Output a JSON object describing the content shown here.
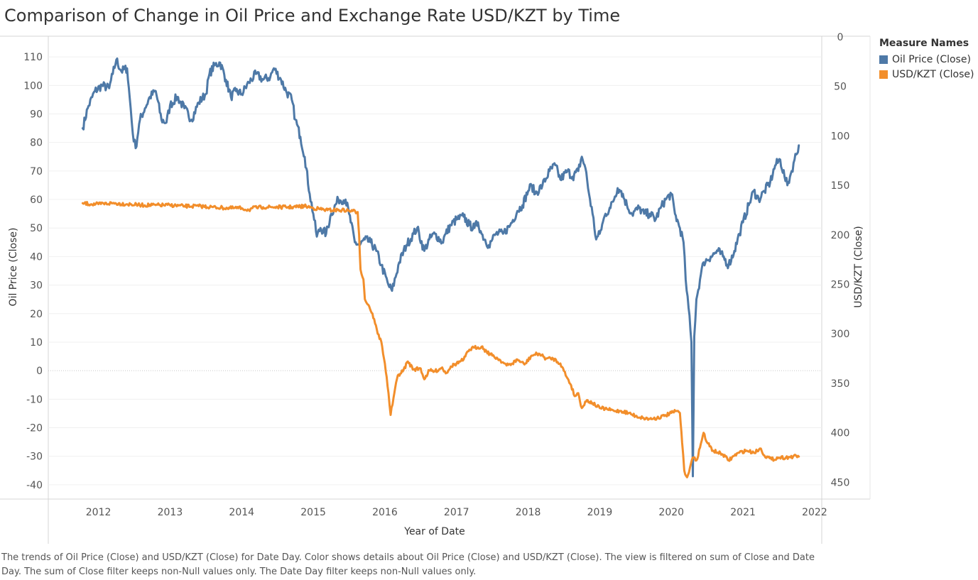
{
  "title": "Comparison of Change in Oil Price and Exchange Rate USD/KZT by Time",
  "caption": "The trends of Oil Price (Close) and USD/KZT (Close) for Date Day.  Color shows details about Oil Price (Close) and USD/KZT (Close). The view is filtered on sum of Close and Date Day. The sum of Close filter keeps non-Null values only. The Date Day filter keeps non-Null values only.",
  "legend": {
    "title": "Measure Names",
    "items": [
      {
        "label": "Oil Price (Close)",
        "color": "#4e79a7"
      },
      {
        "label": "USD/KZT (Close)",
        "color": "#f28e2b"
      }
    ]
  },
  "chart_data": {
    "type": "line",
    "title": "Comparison of Change in Oil Price and Exchange Rate USD/KZT by Time",
    "xlabel": "Year of Date",
    "ylabel_left": "Oil Price (Close)",
    "ylabel_right": "USD/KZT (Close)",
    "xlim": [
      2011.3,
      2022.1
    ],
    "ylim_left": [
      -45,
      117
    ],
    "ylim_right": [
      0,
      467
    ],
    "right_axis_reversed": true,
    "x_ticks": [
      2012,
      2013,
      2014,
      2015,
      2016,
      2017,
      2018,
      2019,
      2020,
      2021,
      2022
    ],
    "y_ticks_left": [
      -40,
      -30,
      -20,
      -10,
      0,
      10,
      20,
      30,
      40,
      50,
      60,
      70,
      80,
      90,
      100,
      110
    ],
    "y_ticks_right": [
      0,
      50,
      100,
      150,
      200,
      250,
      300,
      350,
      400,
      450
    ],
    "grid": true,
    "legend_position": "right",
    "series": [
      {
        "name": "Oil Price (Close)",
        "axis": "left",
        "color": "#4e79a7",
        "points": [
          [
            2011.78,
            85
          ],
          [
            2011.85,
            92
          ],
          [
            2011.95,
            98
          ],
          [
            2012.05,
            100
          ],
          [
            2012.15,
            99
          ],
          [
            2012.2,
            104
          ],
          [
            2012.25,
            109
          ],
          [
            2012.32,
            105
          ],
          [
            2012.4,
            106
          ],
          [
            2012.45,
            92
          ],
          [
            2012.48,
            83
          ],
          [
            2012.52,
            78
          ],
          [
            2012.58,
            88
          ],
          [
            2012.65,
            92
          ],
          [
            2012.72,
            96
          ],
          [
            2012.8,
            98
          ],
          [
            2012.88,
            88
          ],
          [
            2012.95,
            87
          ],
          [
            2013.0,
            93
          ],
          [
            2013.1,
            96
          ],
          [
            2013.2,
            92
          ],
          [
            2013.3,
            88
          ],
          [
            2013.4,
            94
          ],
          [
            2013.5,
            97
          ],
          [
            2013.55,
            104
          ],
          [
            2013.62,
            107
          ],
          [
            2013.7,
            108
          ],
          [
            2013.78,
            102
          ],
          [
            2013.85,
            96
          ],
          [
            2013.92,
            98
          ],
          [
            2014.0,
            97
          ],
          [
            2014.1,
            101
          ],
          [
            2014.2,
            104
          ],
          [
            2014.3,
            102
          ],
          [
            2014.4,
            103
          ],
          [
            2014.45,
            106
          ],
          [
            2014.55,
            102
          ],
          [
            2014.62,
            98
          ],
          [
            2014.7,
            95
          ],
          [
            2014.75,
            88
          ],
          [
            2014.82,
            82
          ],
          [
            2014.88,
            75
          ],
          [
            2014.95,
            62
          ],
          [
            2015.0,
            55
          ],
          [
            2015.05,
            47
          ],
          [
            2015.1,
            50
          ],
          [
            2015.18,
            48
          ],
          [
            2015.25,
            55
          ],
          [
            2015.35,
            60
          ],
          [
            2015.45,
            60
          ],
          [
            2015.5,
            55
          ],
          [
            2015.58,
            45
          ],
          [
            2015.65,
            44
          ],
          [
            2015.72,
            46
          ],
          [
            2015.8,
            45
          ],
          [
            2015.88,
            42
          ],
          [
            2015.95,
            37
          ],
          [
            2016.05,
            30
          ],
          [
            2016.1,
            28
          ],
          [
            2016.2,
            38
          ],
          [
            2016.3,
            44
          ],
          [
            2016.4,
            48
          ],
          [
            2016.45,
            50
          ],
          [
            2016.55,
            42
          ],
          [
            2016.62,
            46
          ],
          [
            2016.7,
            48
          ],
          [
            2016.8,
            45
          ],
          [
            2016.85,
            48
          ],
          [
            2016.92,
            51
          ],
          [
            2017.0,
            53
          ],
          [
            2017.1,
            54
          ],
          [
            2017.18,
            51
          ],
          [
            2017.25,
            50
          ],
          [
            2017.3,
            52
          ],
          [
            2017.35,
            48
          ],
          [
            2017.45,
            44
          ],
          [
            2017.5,
            46
          ],
          [
            2017.55,
            48
          ],
          [
            2017.65,
            48
          ],
          [
            2017.75,
            51
          ],
          [
            2017.85,
            56
          ],
          [
            2017.92,
            58
          ],
          [
            2018.0,
            63
          ],
          [
            2018.05,
            65
          ],
          [
            2018.1,
            62
          ],
          [
            2018.2,
            65
          ],
          [
            2018.3,
            70
          ],
          [
            2018.38,
            72
          ],
          [
            2018.45,
            67
          ],
          [
            2018.55,
            70
          ],
          [
            2018.62,
            68
          ],
          [
            2018.7,
            70
          ],
          [
            2018.75,
            75
          ],
          [
            2018.8,
            71
          ],
          [
            2018.85,
            62
          ],
          [
            2018.9,
            55
          ],
          [
            2018.95,
            46
          ],
          [
            2019.0,
            48
          ],
          [
            2019.08,
            55
          ],
          [
            2019.15,
            57
          ],
          [
            2019.25,
            64
          ],
          [
            2019.3,
            63
          ],
          [
            2019.38,
            58
          ],
          [
            2019.45,
            55
          ],
          [
            2019.55,
            57
          ],
          [
            2019.62,
            55
          ],
          [
            2019.7,
            55
          ],
          [
            2019.78,
            53
          ],
          [
            2019.85,
            57
          ],
          [
            2019.92,
            60
          ],
          [
            2020.0,
            62
          ],
          [
            2020.05,
            55
          ],
          [
            2020.12,
            50
          ],
          [
            2020.17,
            45
          ],
          [
            2020.2,
            32
          ],
          [
            2020.24,
            22
          ],
          [
            2020.28,
            10
          ],
          [
            2020.3,
            -37
          ],
          [
            2020.32,
            12
          ],
          [
            2020.35,
            25
          ],
          [
            2020.4,
            32
          ],
          [
            2020.45,
            38
          ],
          [
            2020.55,
            40
          ],
          [
            2020.65,
            42
          ],
          [
            2020.72,
            40
          ],
          [
            2020.8,
            37
          ],
          [
            2020.88,
            42
          ],
          [
            2020.95,
            48
          ],
          [
            2021.0,
            52
          ],
          [
            2021.08,
            58
          ],
          [
            2021.15,
            63
          ],
          [
            2021.22,
            60
          ],
          [
            2021.3,
            63
          ],
          [
            2021.38,
            66
          ],
          [
            2021.45,
            72
          ],
          [
            2021.52,
            74
          ],
          [
            2021.58,
            68
          ],
          [
            2021.62,
            65
          ],
          [
            2021.68,
            70
          ],
          [
            2021.72,
            74
          ],
          [
            2021.78,
            79
          ]
        ]
      },
      {
        "name": "USD/KZT (Close)",
        "axis": "right",
        "color": "#f28e2b",
        "points": [
          [
            2011.78,
            168
          ],
          [
            2011.9,
            169
          ],
          [
            2012.0,
            169
          ],
          [
            2012.2,
            168
          ],
          [
            2012.4,
            169
          ],
          [
            2012.6,
            170
          ],
          [
            2012.8,
            170
          ],
          [
            2013.0,
            170
          ],
          [
            2013.2,
            171
          ],
          [
            2013.4,
            171
          ],
          [
            2013.6,
            172
          ],
          [
            2013.8,
            173
          ],
          [
            2014.0,
            173
          ],
          [
            2014.1,
            175
          ],
          [
            2014.15,
            173
          ],
          [
            2014.3,
            172
          ],
          [
            2014.5,
            172
          ],
          [
            2014.7,
            172
          ],
          [
            2014.9,
            171
          ],
          [
            2015.0,
            173
          ],
          [
            2015.2,
            175
          ],
          [
            2015.4,
            175
          ],
          [
            2015.55,
            176
          ],
          [
            2015.62,
            177
          ],
          [
            2015.64,
            200
          ],
          [
            2015.66,
            235
          ],
          [
            2015.7,
            245
          ],
          [
            2015.72,
            265
          ],
          [
            2015.78,
            272
          ],
          [
            2015.85,
            285
          ],
          [
            2015.9,
            300
          ],
          [
            2015.95,
            308
          ],
          [
            2016.0,
            330
          ],
          [
            2016.05,
            360
          ],
          [
            2016.08,
            382
          ],
          [
            2016.12,
            365
          ],
          [
            2016.18,
            342
          ],
          [
            2016.25,
            338
          ],
          [
            2016.32,
            328
          ],
          [
            2016.4,
            336
          ],
          [
            2016.5,
            335
          ],
          [
            2016.55,
            346
          ],
          [
            2016.62,
            337
          ],
          [
            2016.7,
            338
          ],
          [
            2016.8,
            334
          ],
          [
            2016.85,
            340
          ],
          [
            2016.92,
            333
          ],
          [
            2017.0,
            330
          ],
          [
            2017.1,
            326
          ],
          [
            2017.18,
            316
          ],
          [
            2017.25,
            314
          ],
          [
            2017.35,
            313
          ],
          [
            2017.42,
            318
          ],
          [
            2017.5,
            322
          ],
          [
            2017.6,
            326
          ],
          [
            2017.7,
            332
          ],
          [
            2017.78,
            330
          ],
          [
            2017.85,
            326
          ],
          [
            2017.95,
            331
          ],
          [
            2018.05,
            322
          ],
          [
            2018.15,
            320
          ],
          [
            2018.25,
            325
          ],
          [
            2018.35,
            325
          ],
          [
            2018.45,
            330
          ],
          [
            2018.55,
            345
          ],
          [
            2018.6,
            352
          ],
          [
            2018.65,
            363
          ],
          [
            2018.7,
            360
          ],
          [
            2018.75,
            375
          ],
          [
            2018.82,
            367
          ],
          [
            2018.9,
            370
          ],
          [
            2019.0,
            375
          ],
          [
            2019.1,
            376
          ],
          [
            2019.2,
            378
          ],
          [
            2019.3,
            378
          ],
          [
            2019.4,
            380
          ],
          [
            2019.5,
            383
          ],
          [
            2019.6,
            385
          ],
          [
            2019.7,
            386
          ],
          [
            2019.8,
            385
          ],
          [
            2019.9,
            383
          ],
          [
            2020.0,
            380
          ],
          [
            2020.08,
            378
          ],
          [
            2020.12,
            380
          ],
          [
            2020.15,
            410
          ],
          [
            2020.18,
            438
          ],
          [
            2020.22,
            445
          ],
          [
            2020.26,
            435
          ],
          [
            2020.3,
            425
          ],
          [
            2020.35,
            428
          ],
          [
            2020.4,
            415
          ],
          [
            2020.45,
            400
          ],
          [
            2020.5,
            410
          ],
          [
            2020.58,
            418
          ],
          [
            2020.65,
            420
          ],
          [
            2020.72,
            422
          ],
          [
            2020.8,
            428
          ],
          [
            2020.88,
            423
          ],
          [
            2020.95,
            420
          ],
          [
            2021.05,
            418
          ],
          [
            2021.15,
            420
          ],
          [
            2021.25,
            416
          ],
          [
            2021.3,
            423
          ],
          [
            2021.4,
            427
          ],
          [
            2021.5,
            425
          ],
          [
            2021.6,
            425
          ],
          [
            2021.7,
            424
          ],
          [
            2021.78,
            424
          ]
        ]
      }
    ]
  }
}
